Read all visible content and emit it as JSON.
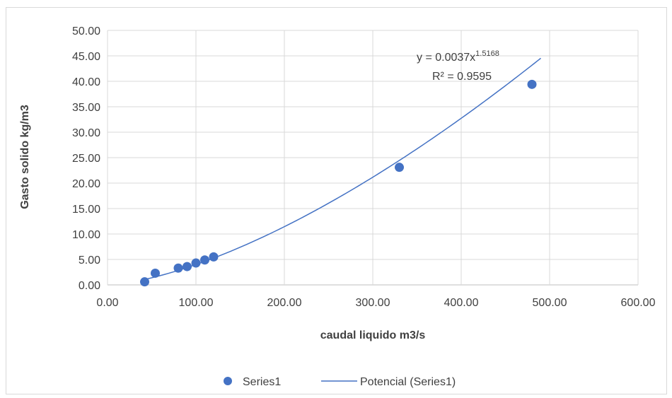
{
  "chart_data": {
    "type": "scatter",
    "title": "",
    "xlabel": "caudal liquido m3/s",
    "ylabel": "Gasto solido kg/m3",
    "xlim": [
      0,
      600
    ],
    "ylim": [
      0,
      50
    ],
    "x_ticks": [
      "0.00",
      "100.00",
      "200.00",
      "300.00",
      "400.00",
      "500.00",
      "600.00"
    ],
    "y_ticks": [
      "0.00",
      "5.00",
      "10.00",
      "15.00",
      "20.00",
      "25.00",
      "30.00",
      "35.00",
      "40.00",
      "45.00",
      "50.00"
    ],
    "grid": true,
    "legend_position": "bottom",
    "series": [
      {
        "name": "Series1",
        "type": "scatter",
        "color": "#4472C4",
        "x": [
          42,
          54,
          80,
          90,
          100,
          110,
          120,
          330,
          480
        ],
        "y": [
          0.6,
          2.3,
          3.3,
          3.6,
          4.3,
          4.9,
          5.5,
          23.1,
          39.4
        ]
      }
    ],
    "trendline": {
      "name": "Potencial (Series1)",
      "type": "power",
      "color": "#4472C4",
      "coefficient": 0.0037,
      "exponent": 1.5168,
      "x_range": [
        42,
        490
      ],
      "equation_prefix": "y = 0.0037x",
      "equation_exponent": "1.5168",
      "r_squared_text": "R² = 0.9595"
    }
  }
}
